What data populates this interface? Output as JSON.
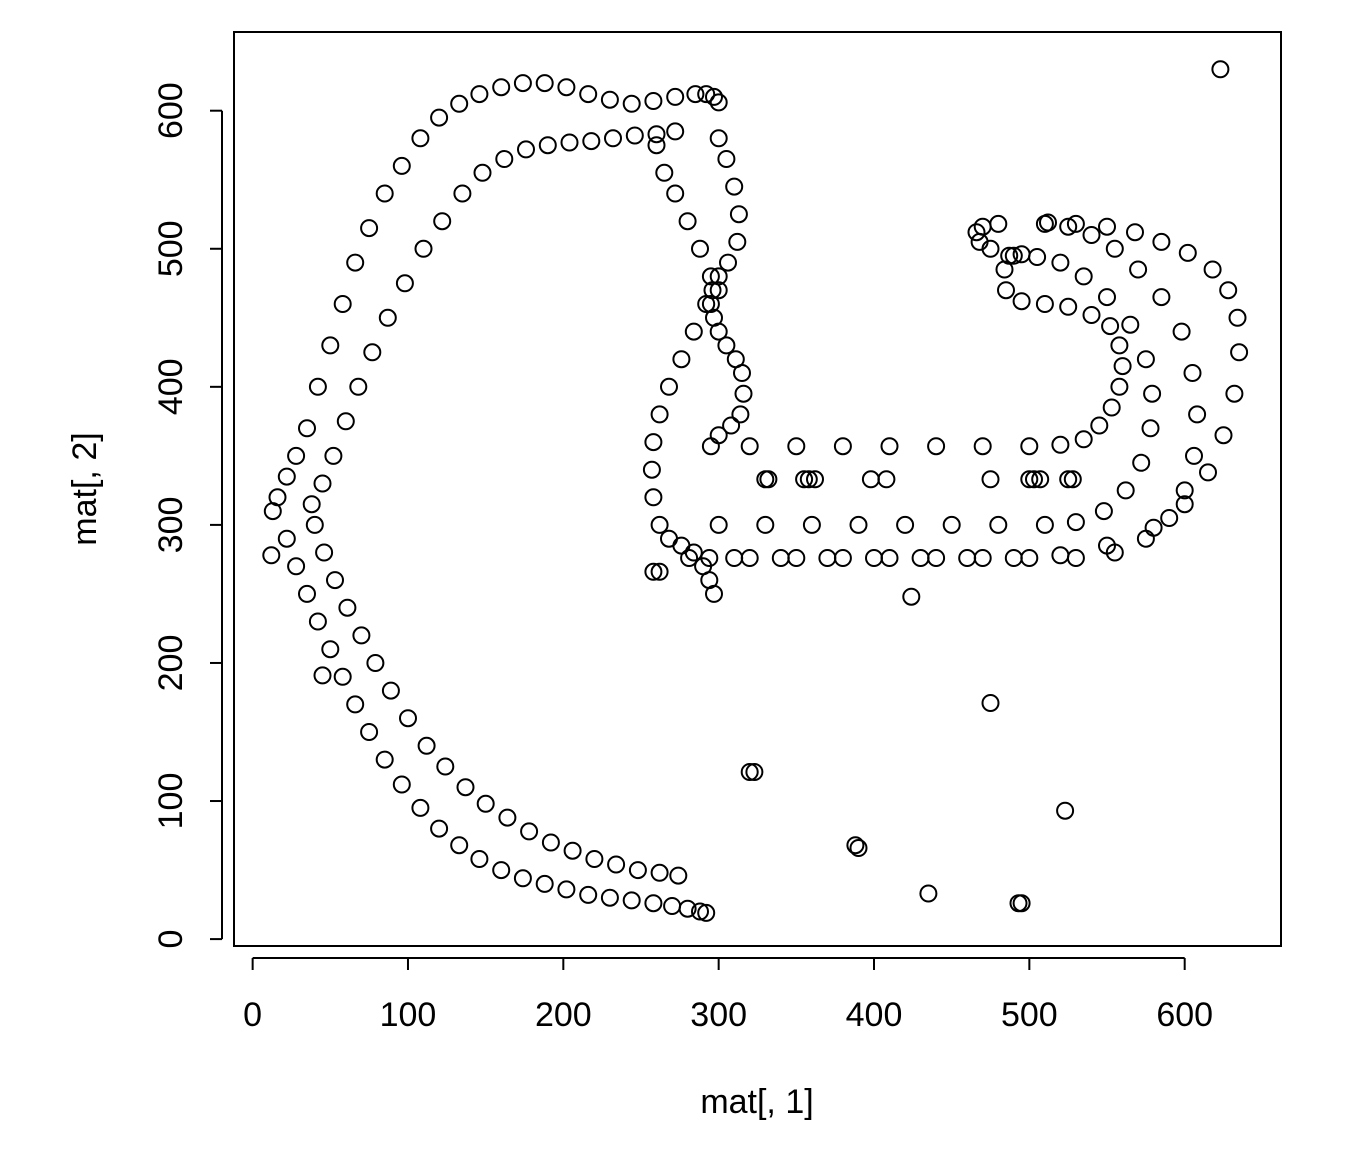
{
  "chart_data": {
    "type": "scatter",
    "title": "",
    "xlabel": "mat[, 1]",
    "ylabel": "mat[, 2]",
    "xlim": [
      -12,
      662
    ],
    "ylim": [
      -5,
      657
    ],
    "xticks": [
      0,
      100,
      200,
      300,
      400,
      500,
      600
    ],
    "yticks": [
      0,
      100,
      200,
      300,
      400,
      500,
      600
    ],
    "xtick_labels": [
      "0",
      "100",
      "200",
      "300",
      "400",
      "500",
      "600"
    ],
    "ytick_labels": [
      "0",
      "100",
      "200",
      "300",
      "400",
      "500",
      "600"
    ],
    "grid": false,
    "legend": "none",
    "marker": "open-circle",
    "point_color": "#000000",
    "series": [
      {
        "x": [
          13,
          16,
          22,
          28,
          35,
          42,
          50,
          58,
          66,
          75,
          85,
          96,
          108,
          120,
          133,
          146,
          160,
          174,
          188,
          202,
          216,
          230,
          244,
          258,
          272,
          285,
          292,
          297,
          300,
          22,
          28,
          35,
          42,
          50,
          58,
          66,
          75,
          85,
          96,
          108,
          120,
          133,
          146,
          160,
          174,
          188,
          202,
          216,
          230,
          244,
          258,
          270,
          280,
          288,
          292,
          38,
          45,
          52,
          60,
          68,
          77,
          87,
          98,
          110,
          122,
          135,
          148,
          162,
          176,
          190,
          204,
          218,
          232,
          246,
          260,
          272,
          40,
          46,
          53,
          61,
          70,
          79,
          89,
          100,
          112,
          124,
          137,
          150,
          164,
          178,
          192,
          206,
          220,
          234,
          248,
          262,
          274,
          260,
          265,
          272,
          280,
          288,
          295,
          300,
          292,
          284,
          276,
          268,
          262,
          258,
          257,
          258,
          262,
          268,
          276,
          284,
          290,
          294,
          297,
          300,
          305,
          310,
          313,
          312,
          306,
          300,
          296,
          295,
          297,
          300,
          305,
          311,
          315,
          316,
          314,
          308,
          300,
          295,
          320,
          350,
          380,
          410,
          440,
          470,
          500,
          520,
          535,
          545,
          553,
          558,
          560,
          558,
          552,
          540,
          525,
          510,
          495,
          485,
          484,
          487,
          495,
          300,
          330,
          360,
          390,
          420,
          450,
          480,
          510,
          530,
          548,
          562,
          572,
          578,
          579,
          575,
          565,
          550,
          535,
          520,
          505,
          490,
          475,
          468,
          466,
          470,
          480,
          294,
          320,
          350,
          380,
          410,
          440,
          470,
          500,
          530,
          555,
          575,
          590,
          600,
          606,
          608,
          605,
          598,
          585,
          570,
          555,
          540,
          525,
          510,
          281,
          310,
          340,
          370,
          400,
          430,
          460,
          490,
          520,
          550,
          580,
          600,
          615,
          625,
          632,
          635,
          634,
          628,
          618,
          602,
          585,
          568,
          550,
          530,
          512,
          330,
          332,
          355,
          358,
          362,
          398,
          408,
          475,
          500,
          503,
          507,
          525,
          528,
          623,
          424,
          475,
          523,
          388,
          390,
          435,
          493,
          495,
          45,
          12,
          320,
          323,
          258,
          262
        ],
        "y": [
          310,
          320,
          335,
          350,
          370,
          400,
          430,
          460,
          490,
          515,
          540,
          560,
          580,
          595,
          605,
          612,
          617,
          620,
          620,
          617,
          612,
          608,
          605,
          607,
          610,
          612,
          612,
          610,
          606,
          290,
          270,
          250,
          230,
          210,
          190,
          170,
          150,
          130,
          112,
          95,
          80,
          68,
          58,
          50,
          44,
          40,
          36,
          32,
          30,
          28,
          26,
          24,
          22,
          20,
          19,
          315,
          330,
          350,
          375,
          400,
          425,
          450,
          475,
          500,
          520,
          540,
          555,
          565,
          572,
          575,
          577,
          578,
          580,
          582,
          583,
          585,
          300,
          280,
          260,
          240,
          220,
          200,
          180,
          160,
          140,
          125,
          110,
          98,
          88,
          78,
          70,
          64,
          58,
          54,
          50,
          48,
          46,
          575,
          555,
          540,
          520,
          500,
          480,
          470,
          460,
          440,
          420,
          400,
          380,
          360,
          340,
          320,
          300,
          290,
          285,
          280,
          270,
          260,
          250,
          580,
          565,
          545,
          525,
          505,
          490,
          480,
          470,
          460,
          450,
          440,
          430,
          420,
          410,
          395,
          380,
          372,
          365,
          357,
          357,
          357,
          357,
          357,
          357,
          357,
          357,
          358,
          362,
          372,
          385,
          400,
          415,
          430,
          444,
          452,
          458,
          460,
          462,
          470,
          485,
          495,
          496,
          300,
          300,
          300,
          300,
          300,
          300,
          300,
          300,
          302,
          310,
          325,
          345,
          370,
          395,
          420,
          445,
          465,
          480,
          490,
          494,
          495,
          500,
          505,
          512,
          516,
          518,
          276,
          276,
          276,
          276,
          276,
          276,
          276,
          276,
          276,
          280,
          290,
          305,
          325,
          350,
          380,
          410,
          440,
          465,
          485,
          500,
          510,
          516,
          518,
          276,
          276,
          276,
          276,
          276,
          276,
          276,
          276,
          278,
          285,
          298,
          315,
          338,
          365,
          395,
          425,
          450,
          470,
          485,
          497,
          505,
          512,
          516,
          518,
          519,
          333,
          333,
          333,
          333,
          333,
          333,
          333,
          333,
          333,
          333,
          333,
          333,
          333,
          630,
          248,
          171,
          93,
          68,
          66,
          33,
          26,
          26,
          191,
          278,
          121,
          121,
          266,
          266
        ]
      }
    ]
  }
}
